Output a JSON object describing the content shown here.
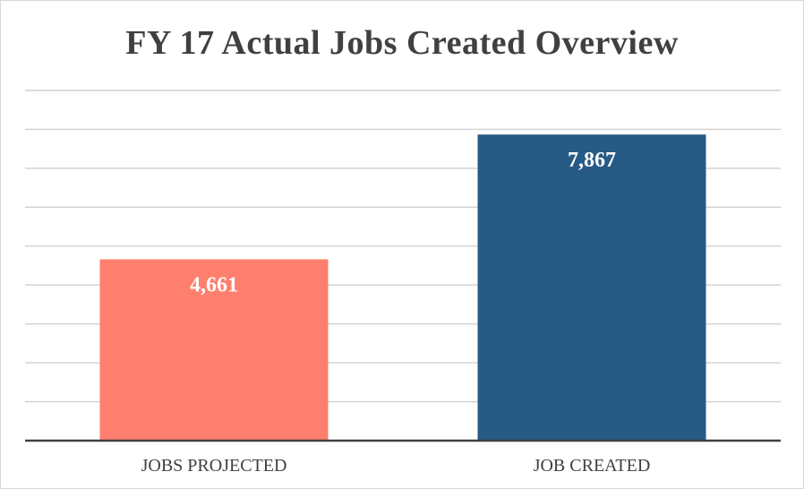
{
  "chart_data": {
    "type": "bar",
    "title": "FY 17 Actual Jobs Created Overview",
    "categories": [
      "JOBS PROJECTED",
      "JOB CREATED"
    ],
    "values": [
      4661,
      7867
    ],
    "value_labels": [
      "4,661",
      "7,867"
    ],
    "colors": [
      "#FF7F6E",
      "#285A86"
    ],
    "ylim": [
      0,
      9000
    ],
    "grid": true,
    "xlabel": "",
    "ylabel": ""
  }
}
